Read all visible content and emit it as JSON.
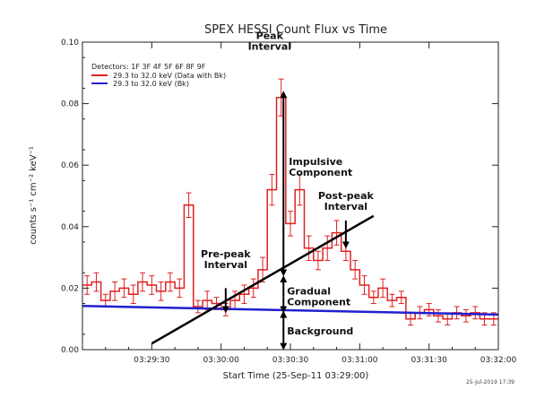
{
  "chart_data": {
    "type": "line",
    "title": "SPEX HESSI Count Flux vs Time",
    "xlabel": "Start Time (25-Sep-11 03:29:00)",
    "ylabel": "counts s⁻¹ cm⁻² keV⁻¹",
    "xlim": [
      0,
      180
    ],
    "ylim": [
      0.0,
      0.1
    ],
    "x_ticks": [
      {
        "value": 30,
        "label": "03:29:30"
      },
      {
        "value": 60,
        "label": "03:30:00"
      },
      {
        "value": 90,
        "label": "03:30:30"
      },
      {
        "value": 120,
        "label": "03:31:00"
      },
      {
        "value": 150,
        "label": "03:31:30"
      },
      {
        "value": 180,
        "label": "03:32:00"
      }
    ],
    "y_ticks": [
      {
        "value": 0.0,
        "label": "0.00"
      },
      {
        "value": 0.02,
        "label": "0.02"
      },
      {
        "value": 0.04,
        "label": "0.04"
      },
      {
        "value": 0.06,
        "label": "0.06"
      },
      {
        "value": 0.08,
        "label": "0.08"
      },
      {
        "value": 0.1,
        "label": "0.10"
      }
    ],
    "legend": {
      "placement": "top-left",
      "header": "Detectors: 1F 3F 4F 5F 6F 8F 9F",
      "entries": [
        {
          "label": "29.3 to 32.0 keV (Data with Bk)",
          "color": "#e02020"
        },
        {
          "label": "29.3 to 32.0 keV (Bk)",
          "color": "#2020d0"
        }
      ]
    },
    "series": [
      {
        "name": "29.3 to 32.0 keV (Data with Bk)",
        "color": "#e02020",
        "style": "histogram-with-error-bars",
        "bin_width": 4,
        "x": [
          0,
          4,
          8,
          12,
          16,
          20,
          24,
          28,
          32,
          36,
          40,
          44,
          48,
          52,
          56,
          60,
          64,
          68,
          72,
          76,
          80,
          84,
          88,
          92,
          96,
          100,
          104,
          108,
          112,
          116,
          120,
          124,
          128,
          132,
          136,
          140,
          144,
          148,
          152,
          156,
          160,
          164,
          168,
          172,
          176
        ],
        "values": [
          0.021,
          0.022,
          0.016,
          0.019,
          0.02,
          0.018,
          0.022,
          0.021,
          0.019,
          0.022,
          0.02,
          0.047,
          0.014,
          0.016,
          0.015,
          0.013,
          0.016,
          0.018,
          0.02,
          0.026,
          0.052,
          0.082,
          0.041,
          0.052,
          0.033,
          0.029,
          0.033,
          0.038,
          0.032,
          0.026,
          0.021,
          0.017,
          0.02,
          0.016,
          0.017,
          0.01,
          0.012,
          0.013,
          0.011,
          0.01,
          0.012,
          0.011,
          0.012,
          0.01,
          0.01
        ],
        "errors": [
          0.003,
          0.003,
          0.002,
          0.003,
          0.003,
          0.003,
          0.003,
          0.003,
          0.003,
          0.003,
          0.003,
          0.004,
          0.002,
          0.003,
          0.002,
          0.002,
          0.003,
          0.003,
          0.003,
          0.004,
          0.005,
          0.006,
          0.004,
          0.005,
          0.004,
          0.003,
          0.004,
          0.004,
          0.003,
          0.003,
          0.003,
          0.002,
          0.003,
          0.002,
          0.002,
          0.002,
          0.002,
          0.002,
          0.002,
          0.002,
          0.002,
          0.002,
          0.002,
          0.002,
          0.002
        ]
      },
      {
        "name": "29.3 to 32.0 keV (Bk)",
        "color": "#2020d0",
        "style": "line",
        "x": [
          0,
          180
        ],
        "values": [
          0.0142,
          0.0114
        ]
      }
    ],
    "annotations": {
      "linear_fit": {
        "x": [
          30,
          126
        ],
        "y": [
          0.002,
          0.0435
        ]
      },
      "labels": [
        {
          "id": "peak",
          "lines": [
            "Peak",
            "Interval"
          ],
          "anchor_x": 81,
          "anchor_y": 0.101
        },
        {
          "id": "impulsive",
          "lines": [
            "Impulsive",
            "Component"
          ],
          "anchor_x": 96,
          "anchor_y": 0.058
        },
        {
          "id": "post-peak",
          "lines": [
            "Post-peak",
            "Interval"
          ],
          "anchor_x": 114,
          "anchor_y": 0.049
        },
        {
          "id": "pre-peak",
          "lines": [
            "Pre-peak",
            "Interval"
          ],
          "anchor_x": 62,
          "anchor_y": 0.031
        },
        {
          "id": "gradual",
          "lines": [
            "Gradual",
            "Component"
          ],
          "anchor_x": 96,
          "anchor_y": 0.016
        },
        {
          "id": "background",
          "lines": [
            "Background"
          ],
          "anchor_x": 96,
          "anchor_y": 0.005
        }
      ]
    },
    "footer": "25-Jul-2019 17:39"
  }
}
